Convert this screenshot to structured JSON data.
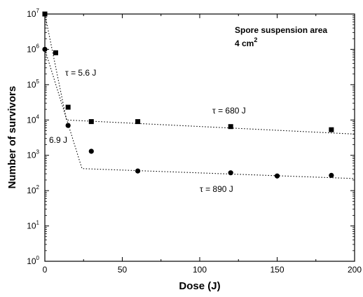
{
  "chart_data": {
    "type": "scatter",
    "xlabel": "Dose (J)",
    "ylabel": "Number of survivors",
    "xlim": [
      0,
      200
    ],
    "ylim": [
      1,
      10000000
    ],
    "yscale": "log",
    "x_ticks": [
      "0",
      "50",
      "100",
      "150",
      "200"
    ],
    "y_ticks": [
      {
        "base": "10",
        "exp": "0"
      },
      {
        "base": "10",
        "exp": "1"
      },
      {
        "base": "10",
        "exp": "2"
      },
      {
        "base": "10",
        "exp": "3"
      },
      {
        "base": "10",
        "exp": "4"
      },
      {
        "base": "10",
        "exp": "5"
      },
      {
        "base": "10",
        "exp": "6"
      },
      {
        "base": "10",
        "exp": "7"
      }
    ],
    "grid": false,
    "series": [
      {
        "marker": "square",
        "x": [
          0,
          7,
          15,
          30,
          60,
          120,
          185
        ],
        "y": [
          10000000,
          800000,
          23000,
          9000,
          9000,
          6500,
          5300
        ]
      },
      {
        "marker": "circle",
        "x": [
          0,
          15,
          30,
          60,
          120,
          150,
          185
        ],
        "y": [
          1000000,
          7000,
          1300,
          360,
          320,
          260,
          270
        ]
      }
    ],
    "fit_lines": [
      {
        "style": "dotted",
        "x": [
          0,
          14,
          200
        ],
        "y": [
          10000000,
          10000,
          4000
        ]
      },
      {
        "style": "dotted",
        "x": [
          0,
          24,
          200
        ],
        "y": [
          1000000,
          420,
          220
        ]
      }
    ],
    "annotations": {
      "box_line1": "Spore suspension area",
      "box_line2_main": "4 cm",
      "box_line2_sup": "2",
      "tau_fast_top": "τ = 5.6 J",
      "tau_fast_bottom": "6.9 J",
      "tau_slow_top": "τ = 680 J",
      "tau_slow_bottom": "τ = 890 J"
    }
  }
}
